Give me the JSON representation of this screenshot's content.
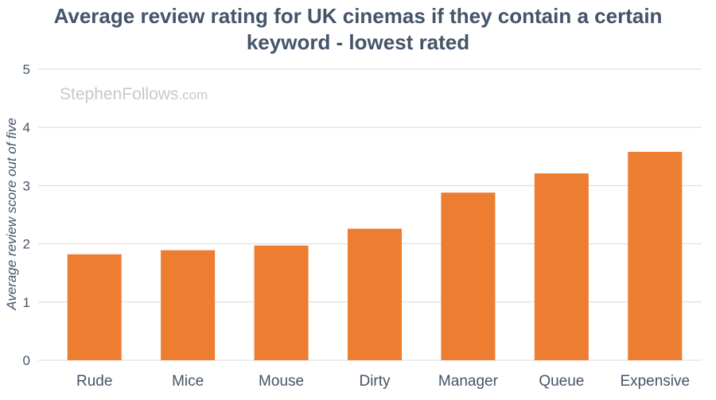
{
  "chart_data": {
    "type": "bar",
    "title_lines": [
      "Average review rating for UK cinemas if they contain a certain",
      "keyword - lowest rated"
    ],
    "categories": [
      "Rude",
      "Mice",
      "Mouse",
      "Dirty",
      "Manager",
      "Queue",
      "Expensive"
    ],
    "values": [
      1.82,
      1.89,
      1.97,
      2.26,
      2.88,
      3.21,
      3.58
    ],
    "xlabel": "",
    "ylabel": "Average review score out of five",
    "ylim": [
      0,
      5
    ],
    "yticks": [
      "0",
      "1",
      "2",
      "3",
      "4",
      "5"
    ],
    "grid": true,
    "bar_color": "#ed7d31",
    "watermark_main": "StephenFollows",
    "watermark_suffix": ".com"
  }
}
